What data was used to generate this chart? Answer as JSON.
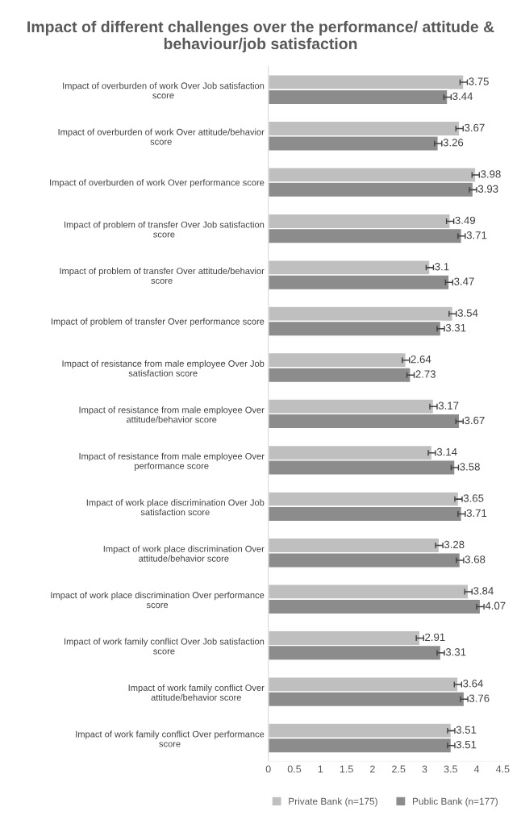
{
  "chart_data": {
    "type": "bar",
    "orientation": "horizontal",
    "title": "Impact of different challenges over the performance/ attitude & behaviour/job satisfaction",
    "categories": [
      "Impact of overburden of work Over Job satisfaction score",
      "Impact of overburden of work Over attitude/behavior score",
      "Impact of overburden of work Over performance score",
      "Impact of problem of transfer Over Job satisfaction score",
      "Impact of problem of transfer Over attitude/behavior score",
      "Impact of problem of transfer Over performance score",
      "Impact of resistance from male employee Over Job satisfaction score",
      "Impact of resistance from male employee Over attitude/behavior score",
      "Impact of resistance from male employee Over performance score",
      "Impact of work place discrimination Over Job satisfaction score",
      "Impact of work place discrimination Over attitude/behavior score",
      "Impact of work place discrimination Over performance score",
      "Impact of work family conflict Over Job satisfaction score",
      "Impact of work family conflict Over attitude/behavior score",
      "Impact of work family conflict Over performance score"
    ],
    "series": [
      {
        "name": "Private Bank (n=175)",
        "color": "#bfbfbf",
        "values": [
          3.75,
          3.67,
          3.98,
          3.49,
          3.1,
          3.54,
          2.64,
          3.17,
          3.14,
          3.65,
          3.28,
          3.84,
          2.91,
          3.64,
          3.51
        ],
        "errors": [
          0.07,
          0.07,
          0.07,
          0.07,
          0.07,
          0.07,
          0.07,
          0.07,
          0.07,
          0.07,
          0.07,
          0.07,
          0.07,
          0.07,
          0.07
        ]
      },
      {
        "name": "Public Bank (n=177)",
        "color": "#8c8c8c",
        "values": [
          3.44,
          3.26,
          3.93,
          3.71,
          3.47,
          3.31,
          2.73,
          3.67,
          3.58,
          3.71,
          3.68,
          4.07,
          3.31,
          3.76,
          3.51
        ],
        "errors": [
          0.07,
          0.07,
          0.07,
          0.07,
          0.07,
          0.07,
          0.07,
          0.07,
          0.07,
          0.07,
          0.07,
          0.07,
          0.07,
          0.07,
          0.07
        ]
      }
    ],
    "xlim": [
      0,
      4.5
    ],
    "xticks": [
      0,
      0.5,
      1,
      1.5,
      2,
      2.5,
      3,
      3.5,
      4,
      4.5
    ],
    "data_labels": true,
    "grid": false,
    "legend": "bottom"
  }
}
